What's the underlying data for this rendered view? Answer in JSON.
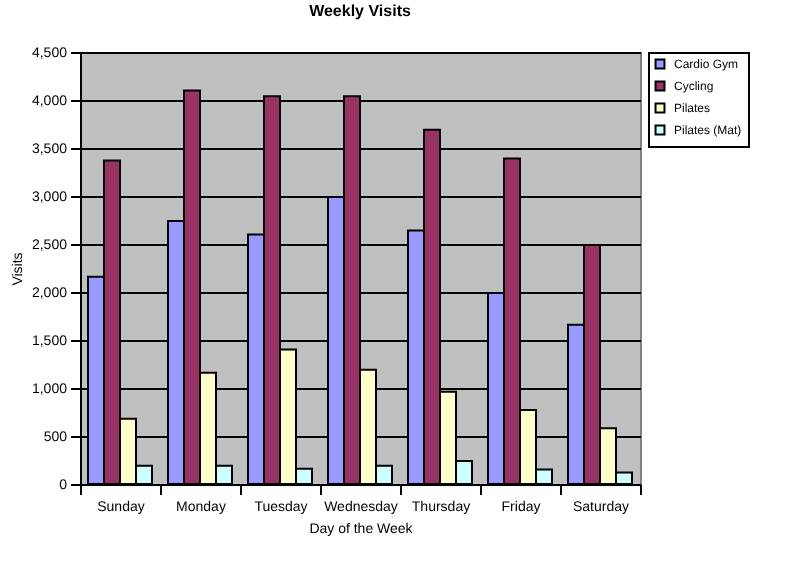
{
  "chart_data": {
    "type": "bar",
    "title": "Weekly Visits",
    "xlabel": "Day of the Week",
    "ylabel": "Visits",
    "categories": [
      "Sunday",
      "Monday",
      "Tuesday",
      "Wednesday",
      "Thursday",
      "Friday",
      "Saturday"
    ],
    "series": [
      {
        "name": "Cardio Gym",
        "color": "#9999ff",
        "values": [
          2160,
          2740,
          2600,
          2990,
          2640,
          1990,
          1660
        ]
      },
      {
        "name": "Cycling",
        "color": "#993366",
        "values": [
          3370,
          4100,
          4040,
          4040,
          3690,
          3390,
          2490
        ]
      },
      {
        "name": "Pilates",
        "color": "#ffffcc",
        "values": [
          680,
          1160,
          1400,
          1190,
          960,
          770,
          580
        ]
      },
      {
        "name": "Pilates (Mat)",
        "color": "#ccffff",
        "values": [
          190,
          190,
          160,
          190,
          240,
          150,
          120
        ]
      }
    ],
    "ylim": [
      0,
      4500
    ],
    "yticks": [
      0,
      {
        "value": 500,
        "label": "500"
      },
      {
        "value": 1000,
        "label": "1,000"
      },
      {
        "value": 1500,
        "label": "1,500"
      },
      {
        "value": 2000,
        "label": "2,000"
      },
      {
        "value": 2500,
        "label": "2,500"
      },
      {
        "value": 3000,
        "label": "3,000"
      },
      {
        "value": 3500,
        "label": "3,500"
      },
      {
        "value": 4000,
        "label": "4,000"
      },
      {
        "value": 4500,
        "label": "4,500"
      }
    ],
    "grid": "y",
    "legend": "right"
  }
}
